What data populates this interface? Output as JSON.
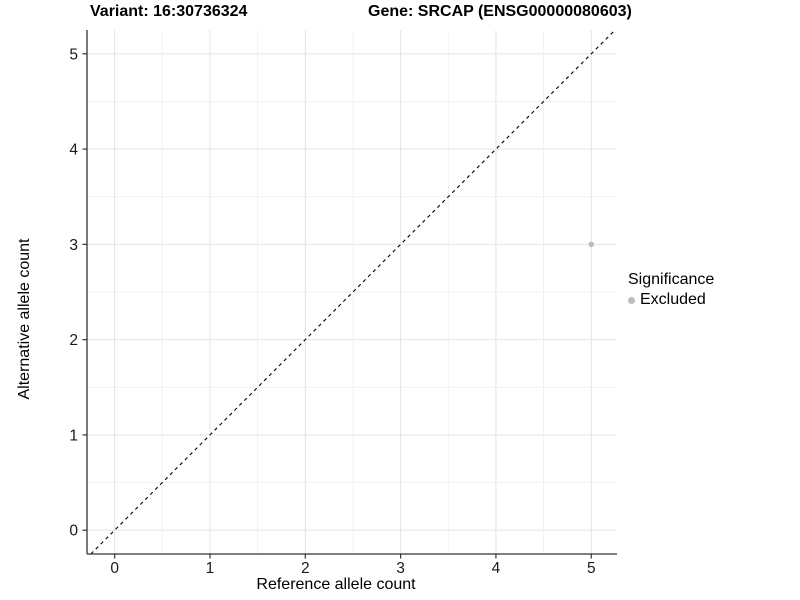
{
  "header": {
    "title_left": "Variant: 16:30736324",
    "title_right": "Gene: SRCAP (ENSG00000080603)"
  },
  "chart_data": {
    "type": "scatter",
    "title": "Variant: 16:30736324 — Gene: SRCAP (ENSG00000080603)",
    "xlabel": "Reference allele count",
    "ylabel": "Alternative allele count",
    "xlim": [
      -0.29,
      5.27
    ],
    "ylim": [
      -0.25,
      5.25
    ],
    "x_ticks": [
      0,
      1,
      2,
      3,
      4,
      5
    ],
    "y_ticks": [
      0,
      1,
      2,
      3,
      4,
      5
    ],
    "minor_step": 0.5,
    "grid": true,
    "identity_line": {
      "slope": 1,
      "intercept": 0,
      "style": "dashed",
      "color": "#000000"
    },
    "series": [
      {
        "name": "Excluded",
        "color": "#bdbdbd",
        "points": [
          {
            "x": 5,
            "y": 3
          }
        ]
      }
    ],
    "legend": {
      "title": "Significance",
      "position": "right",
      "items": [
        {
          "label": "Excluded",
          "color": "#bdbdbd"
        }
      ]
    }
  },
  "style": {
    "background": "#ffffff",
    "grid_major_color": "#e4e4e4",
    "grid_minor_color": "#f0f0f0",
    "axis_line_color": "#333333",
    "tick_label_color": "#1a1a1a",
    "point_color": "#bdbdbd"
  }
}
